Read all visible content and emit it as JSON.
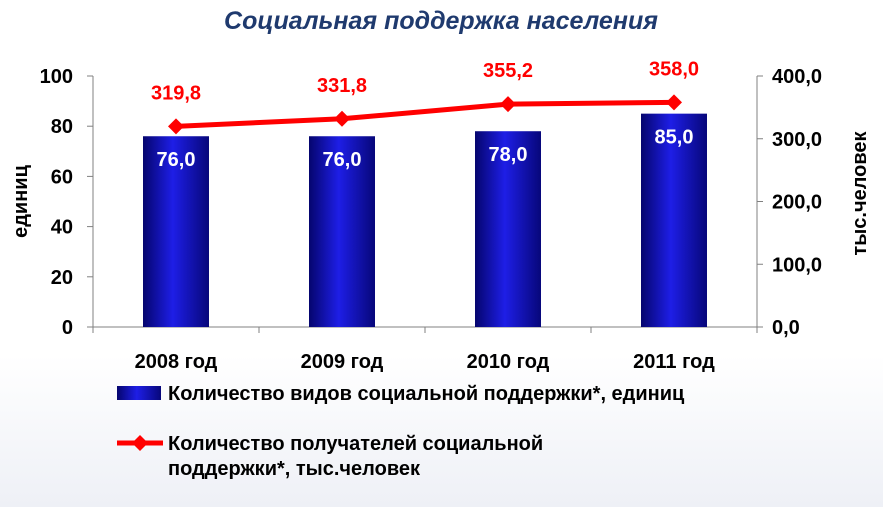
{
  "chart_data": {
    "type": "bar",
    "title": "Социальная поддержка  населения",
    "categories": [
      "2008 год",
      "2009 год",
      "2010 год",
      "2011 год"
    ],
    "series": [
      {
        "name": "Количество видов социальной поддержки*, единиц",
        "type": "bar",
        "axis": "left",
        "values": [
          76.0,
          76.0,
          78.0,
          85.0
        ],
        "labels": [
          "76,0",
          "76,0",
          "78,0",
          "85,0"
        ],
        "color": "#1414c8"
      },
      {
        "name": "Количество получателей социальной поддержки*, тыс.человек",
        "type": "line",
        "axis": "right",
        "values": [
          319.8,
          331.8,
          355.2,
          358.0
        ],
        "labels": [
          "319,8",
          "331,8",
          "355,2",
          "358,0"
        ],
        "color": "#ff0000"
      }
    ],
    "y_left": {
      "label": "единиц",
      "ylim": [
        0,
        100
      ],
      "ticks": [
        0,
        20,
        40,
        60,
        80,
        100
      ],
      "tick_labels": [
        "0",
        "20",
        "40",
        "60",
        "80",
        "100"
      ]
    },
    "y_right": {
      "label": "тыс.человек",
      "ylim": [
        0,
        400
      ],
      "ticks": [
        0,
        100,
        200,
        300,
        400
      ],
      "tick_labels": [
        "0,0",
        "100,0",
        "200,0",
        "300,0",
        "400,0"
      ]
    },
    "grid": false,
    "legend": {
      "position": "bottom",
      "entries": [
        {
          "lines": [
            "Количество видов социальной поддержки*, единиц"
          ]
        },
        {
          "lines": [
            "Количество получателей социальной",
            "поддержки*, тыс.человек"
          ]
        }
      ]
    }
  }
}
